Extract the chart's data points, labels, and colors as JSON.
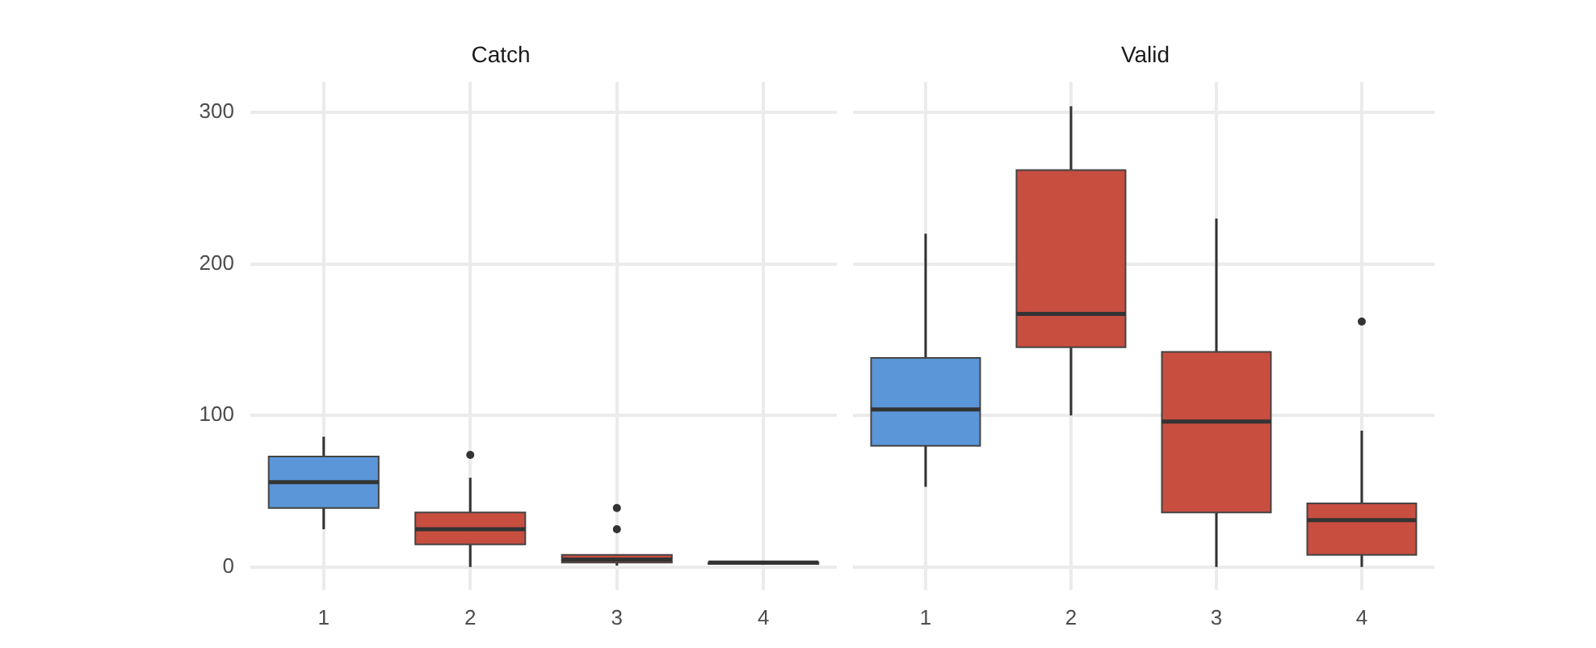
{
  "chart_data": [
    {
      "type": "box",
      "title": "Catch",
      "categories": [
        "1",
        "2",
        "3",
        "4"
      ],
      "colors": [
        "#5b96d8",
        "#c84e40",
        "#c84e40",
        "#c84e40"
      ],
      "boxes": [
        {
          "low": 25,
          "q1": 39,
          "median": 56,
          "q3": 73,
          "high": 86
        },
        {
          "low": 0,
          "q1": 15,
          "median": 25,
          "q3": 36,
          "high": 59,
          "outliers": [
            74
          ]
        },
        {
          "low": 1,
          "q1": 3,
          "median": 5,
          "q3": 8,
          "high": 8,
          "outliers": [
            25,
            39
          ]
        },
        {
          "low": 2,
          "q1": 2,
          "median": 3,
          "q3": 3,
          "high": 4
        }
      ],
      "ylim": [
        -15,
        320
      ],
      "yticks": [
        0,
        100,
        200,
        300
      ],
      "grid": true
    },
    {
      "type": "box",
      "title": "Valid",
      "categories": [
        "1",
        "2",
        "3",
        "4"
      ],
      "colors": [
        "#5b96d8",
        "#c84e40",
        "#c84e40",
        "#c84e40"
      ],
      "boxes": [
        {
          "low": 53,
          "q1": 80,
          "median": 104,
          "q3": 138,
          "high": 220
        },
        {
          "low": 100,
          "q1": 145,
          "median": 167,
          "q3": 262,
          "high": 304
        },
        {
          "low": 0,
          "q1": 36,
          "median": 96,
          "q3": 142,
          "high": 230
        },
        {
          "low": 0,
          "q1": 8,
          "median": 31,
          "q3": 42,
          "high": 90,
          "outliers": [
            162
          ]
        }
      ],
      "ylim": [
        -15,
        320
      ],
      "yticks": [
        0,
        100,
        200,
        300
      ],
      "grid": true,
      "tick_labels": "x"
    }
  ]
}
